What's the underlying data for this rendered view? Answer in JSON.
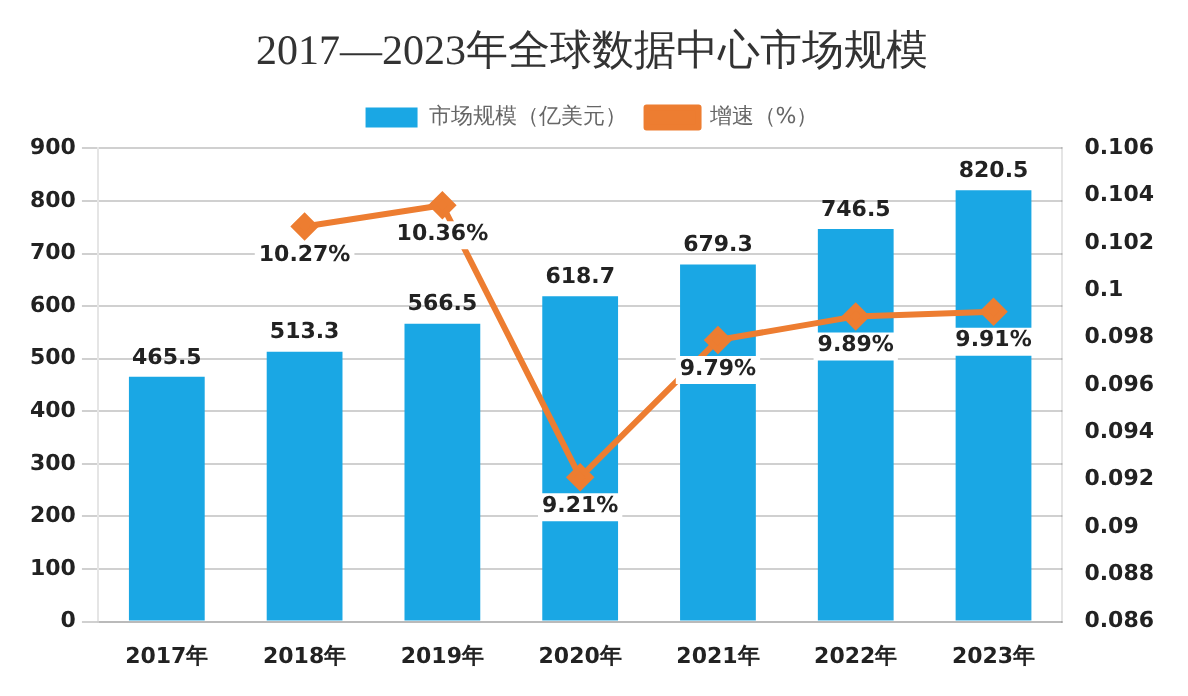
{
  "chart_data": {
    "type": "bar",
    "title": "2017—2023年全球数据中心市场规模",
    "categories": [
      "2017年",
      "2018年",
      "2019年",
      "2020年",
      "2021年",
      "2022年",
      "2023年"
    ],
    "series": [
      {
        "name": "市场规模（亿美元）",
        "color": "#1aa7e4",
        "values": [
          465.5,
          513.3,
          566.5,
          618.7,
          679.3,
          746.5,
          820.5
        ],
        "data_labels": true
      },
      {
        "name": "增速（%）",
        "type": "line",
        "axis": "y2",
        "color": "#ed7d31",
        "marker": "diamond",
        "values": [
          null,
          0.1027,
          0.1036,
          0.0921,
          0.0979,
          0.0989,
          0.0991
        ],
        "value_labels": [
          null,
          "10.27%",
          "10.36%",
          "9.21%",
          "9.79%",
          "9.89%",
          "9.91%"
        ]
      }
    ],
    "ylim": [
      0,
      900
    ],
    "yticks": [
      0,
      100,
      200,
      300,
      400,
      500,
      600,
      700,
      800,
      900
    ],
    "y2lim": [
      0.086,
      0.106
    ],
    "y2ticks": [
      0.086,
      0.088,
      0.09,
      0.092,
      0.094,
      0.096,
      0.098,
      0.1,
      0.102,
      0.104,
      0.106
    ],
    "grid": "y",
    "legend": "top"
  }
}
